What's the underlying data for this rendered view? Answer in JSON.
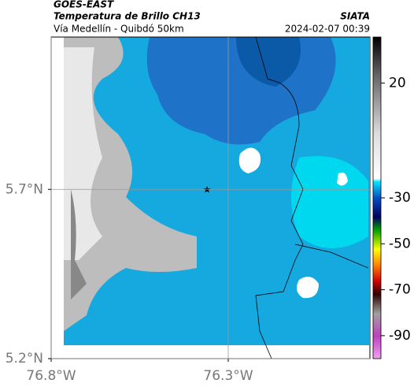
{
  "header": {
    "title": "GOES-EAST",
    "product": "Temperatura de Brillo CH13",
    "region": "Vía Medellín - Quibdó 50km",
    "source": "SIATA",
    "datetime": "2024-02-07 00:39"
  },
  "map": {
    "xlim": [
      -76.8,
      -75.9
    ],
    "ylim": [
      5.2,
      6.15
    ],
    "xticks": [
      {
        "value": -76.8,
        "label": "76.8°W"
      },
      {
        "value": -76.3,
        "label": "76.3°W"
      }
    ],
    "yticks": [
      {
        "value": 5.2,
        "label": "5.2°N"
      },
      {
        "value": 5.7,
        "label": "5.7°N"
      }
    ],
    "grid": true
  },
  "colorbar": {
    "clim": [
      40,
      -100
    ],
    "ticks": [
      20,
      -30,
      -50,
      -70,
      -90
    ]
  }
}
